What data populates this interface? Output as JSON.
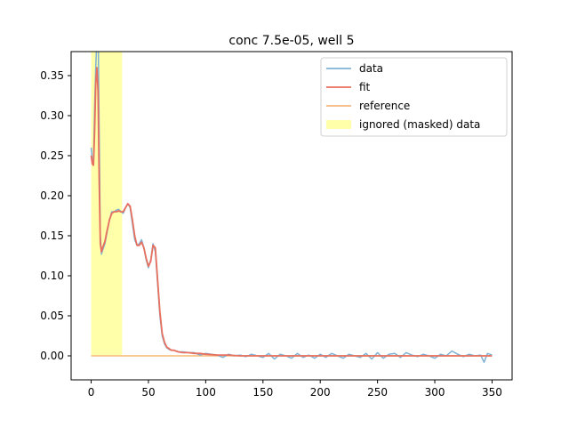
{
  "chart_data": {
    "type": "line",
    "title": "conc 7.5e-05, well 5",
    "xlabel": "",
    "ylabel": "",
    "xlim": [
      -17.5,
      367.5
    ],
    "ylim": [
      -0.03,
      0.38
    ],
    "x_ticks": [
      0,
      50,
      100,
      150,
      200,
      250,
      300,
      350
    ],
    "y_ticks": [
      0.0,
      0.05,
      0.1,
      0.15,
      0.2,
      0.25,
      0.3,
      0.35
    ],
    "x_tick_labels": [
      "0",
      "50",
      "100",
      "150",
      "200",
      "250",
      "300",
      "350"
    ],
    "y_tick_labels": [
      "0.00",
      "0.05",
      "0.10",
      "0.15",
      "0.20",
      "0.25",
      "0.30",
      "0.35"
    ],
    "grid": false,
    "legend_position": "top-right",
    "masked_region": {
      "label": "ignored (masked) data",
      "x_start": 0,
      "x_end": 27,
      "color": "#ffffaa"
    },
    "series": [
      {
        "name": "data",
        "color": "#7fb2d5",
        "x": [
          0,
          1,
          2,
          3,
          4,
          5,
          6,
          7,
          8,
          9,
          10,
          12,
          14,
          16,
          18,
          20,
          22,
          24,
          26,
          28,
          30,
          32,
          34,
          36,
          38,
          40,
          42,
          44,
          46,
          48,
          50,
          52,
          54,
          56,
          58,
          60,
          62,
          64,
          66,
          68,
          70,
          72,
          74,
          76,
          80,
          85,
          90,
          95,
          100,
          105,
          110,
          115,
          120,
          125,
          130,
          135,
          140,
          145,
          150,
          155,
          160,
          165,
          170,
          175,
          180,
          185,
          190,
          195,
          200,
          205,
          210,
          215,
          220,
          225,
          230,
          235,
          240,
          245,
          250,
          255,
          260,
          265,
          270,
          275,
          280,
          285,
          290,
          295,
          300,
          305,
          310,
          315,
          320,
          325,
          330,
          335,
          340,
          343,
          346,
          350
        ],
        "values": [
          0.26,
          0.245,
          0.24,
          0.31,
          0.36,
          0.4,
          0.42,
          0.28,
          0.15,
          0.127,
          0.132,
          0.14,
          0.155,
          0.17,
          0.18,
          0.18,
          0.182,
          0.183,
          0.18,
          0.178,
          0.185,
          0.19,
          0.185,
          0.165,
          0.145,
          0.138,
          0.14,
          0.145,
          0.135,
          0.12,
          0.11,
          0.12,
          0.14,
          0.13,
          0.09,
          0.05,
          0.025,
          0.015,
          0.01,
          0.008,
          0.007,
          0.007,
          0.006,
          0.005,
          0.005,
          0.004,
          0.004,
          0.001,
          0.003,
          0.002,
          0.001,
          -0.002,
          0.002,
          0.0,
          0.001,
          -0.001,
          0.002,
          0.0,
          -0.002,
          0.003,
          -0.004,
          0.002,
          0.0,
          -0.003,
          0.003,
          -0.002,
          0.001,
          -0.003,
          0.002,
          -0.002,
          0.003,
          0.0,
          -0.003,
          0.002,
          0.0,
          -0.002,
          0.003,
          -0.004,
          0.004,
          -0.003,
          0.002,
          0.003,
          -0.002,
          0.004,
          0.001,
          -0.001,
          0.002,
          0.0,
          -0.003,
          0.002,
          0.0,
          0.006,
          0.002,
          -0.001,
          0.002,
          0.0,
          0.001,
          -0.008,
          0.003,
          0.001
        ]
      },
      {
        "name": "fit",
        "color": "#e8705e",
        "x": [
          0,
          1,
          2,
          3,
          4,
          5,
          6,
          7,
          8,
          9,
          10,
          12,
          14,
          16,
          18,
          20,
          22,
          24,
          26,
          28,
          30,
          32,
          34,
          36,
          38,
          40,
          42,
          44,
          46,
          48,
          50,
          52,
          54,
          56,
          58,
          60,
          62,
          64,
          66,
          68,
          70,
          72,
          74,
          76,
          80,
          85,
          90,
          95,
          100,
          110,
          120,
          130,
          140,
          150,
          160,
          170,
          180,
          190,
          200,
          210,
          220,
          230,
          240,
          250,
          260,
          270,
          280,
          290,
          300,
          310,
          320,
          330,
          340,
          350
        ],
        "values": [
          0.25,
          0.24,
          0.238,
          0.28,
          0.34,
          0.36,
          0.33,
          0.22,
          0.14,
          0.13,
          0.135,
          0.143,
          0.157,
          0.17,
          0.178,
          0.18,
          0.18,
          0.181,
          0.18,
          0.18,
          0.185,
          0.19,
          0.187,
          0.17,
          0.15,
          0.138,
          0.138,
          0.142,
          0.135,
          0.122,
          0.112,
          0.118,
          0.138,
          0.135,
          0.095,
          0.055,
          0.028,
          0.017,
          0.011,
          0.009,
          0.007,
          0.007,
          0.006,
          0.005,
          0.004,
          0.004,
          0.003,
          0.003,
          0.002,
          0.001,
          0.001,
          0.0,
          0.0,
          0.0,
          0.0,
          0.0,
          0.0,
          0.0,
          0.0,
          0.0,
          0.0,
          0.0,
          0.0,
          0.0,
          0.0,
          0.0,
          0.0,
          0.0,
          0.0,
          0.0,
          0.0,
          0.0,
          0.0,
          0.0
        ]
      },
      {
        "name": "reference",
        "color": "#f5b87f",
        "x": [
          0,
          350
        ],
        "values": [
          0.0,
          0.0
        ]
      }
    ]
  }
}
